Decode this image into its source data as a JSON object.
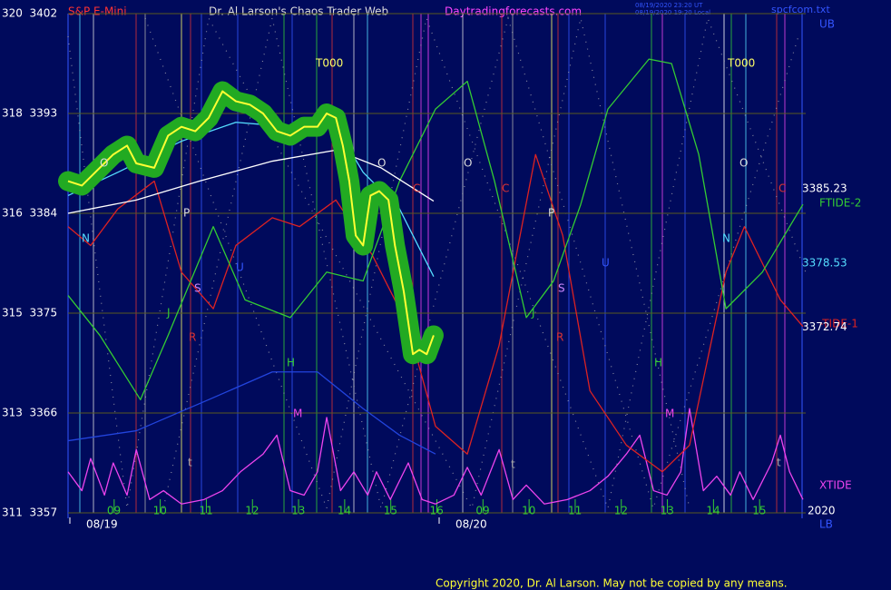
{
  "chart_data": {
    "type": "line",
    "instrument": "S&P E-Mini",
    "title": "Dr. Al Larson's Chaos Trader Web",
    "website": "Daytradingforecasts.com",
    "timestamp_lines": [
      "08/19/2020 23:20 UT",
      "08/19/2020 19:20 Local"
    ],
    "file_name": "spcfcom.txt",
    "copyright": "Copyright 2020, Dr. Al Larson. May not be copied by any means.",
    "upper_band_label": "UB",
    "lower_band_label": "LB",
    "year_label": "2020",
    "date_labels": [
      "08/19",
      "08/20"
    ],
    "right_value_labels": [
      {
        "value": 3385.23,
        "label": "3385.23",
        "color": "#ffffff"
      },
      {
        "value": 3378.53,
        "label": "3378.53",
        "color": "#55ddff"
      },
      {
        "value": 3372.74,
        "label": "3372.74",
        "color": "#ffffff"
      }
    ],
    "annotations": [
      {
        "text": "T000",
        "color": "#ffff66"
      },
      {
        "text": "T000",
        "color": "#ffff66"
      },
      {
        "text": "O",
        "color": "#dddddd"
      },
      {
        "text": "O",
        "color": "#dddddd"
      },
      {
        "text": "O",
        "color": "#dddddd"
      },
      {
        "text": "O",
        "color": "#dddddd"
      },
      {
        "text": "P",
        "color": "#dddddd"
      },
      {
        "text": "P",
        "color": "#dddddd"
      },
      {
        "text": "N",
        "color": "#55ddff"
      },
      {
        "text": "N",
        "color": "#55ddff"
      },
      {
        "text": "S",
        "color": "#cc88ff"
      },
      {
        "text": "S",
        "color": "#cc88ff"
      },
      {
        "text": "J",
        "color": "#33cc33"
      },
      {
        "text": "J",
        "color": "#33cc33"
      },
      {
        "text": "R",
        "color": "#dd3333"
      },
      {
        "text": "R",
        "color": "#dd3333"
      },
      {
        "text": "H",
        "color": "#33cc33"
      },
      {
        "text": "H",
        "color": "#33cc33"
      },
      {
        "text": "M",
        "color": "#ee44ee"
      },
      {
        "text": "M",
        "color": "#ee44ee"
      },
      {
        "text": "C",
        "color": "#dd3333"
      },
      {
        "text": "C",
        "color": "#dd3333"
      },
      {
        "text": "C",
        "color": "#dd3333"
      },
      {
        "text": "U",
        "color": "#3355ff"
      },
      {
        "text": "U",
        "color": "#3355ff"
      },
      {
        "text": "t",
        "color": "#aaaaaa"
      },
      {
        "text": "t",
        "color": "#aaaaaa"
      },
      {
        "text": "t",
        "color": "#aaaaaa"
      }
    ],
    "xlim": [
      0,
      16
    ],
    "xticks": [
      {
        "value": 1,
        "label": "09"
      },
      {
        "value": 2,
        "label": "10"
      },
      {
        "value": 3,
        "label": "11"
      },
      {
        "value": 4,
        "label": "12"
      },
      {
        "value": 5,
        "label": "13"
      },
      {
        "value": 6,
        "label": "14"
      },
      {
        "value": 7,
        "label": "15"
      },
      {
        "value": 8,
        "label": "16"
      },
      {
        "value": 9,
        "label": "09"
      },
      {
        "value": 10,
        "label": "10"
      },
      {
        "value": 11,
        "label": "11"
      },
      {
        "value": 12,
        "label": "12"
      },
      {
        "value": 13,
        "label": "13"
      },
      {
        "value": 14,
        "label": "14"
      },
      {
        "value": 15,
        "label": "15"
      }
    ],
    "ylim": [
      3357,
      3402
    ],
    "yticks": [
      {
        "value": 3357,
        "label": "311  3357"
      },
      {
        "value": 3366,
        "label": "313  3366"
      },
      {
        "value": 3375,
        "label": "315  3375"
      },
      {
        "value": 3384,
        "label": "316  3384"
      },
      {
        "value": 3393,
        "label": "318  3393"
      },
      {
        "value": 3402,
        "label": "320  3402"
      }
    ],
    "grid": true,
    "series": [
      {
        "name": "XTIDE",
        "color": "#ee44ee",
        "x": [
          0,
          0.3,
          0.49,
          0.79,
          0.98,
          1.28,
          1.48,
          1.77,
          2.07,
          2.46,
          2.95,
          3.35,
          3.74,
          4.23,
          4.53,
          4.82,
          5.12,
          5.41,
          5.61,
          5.91,
          6.2,
          6.5,
          6.69,
          6.99,
          7.38,
          7.68,
          7.97,
          8.37,
          8.66,
          8.96,
          9.35,
          9.65,
          9.94,
          10.33,
          10.83,
          11.32,
          11.71,
          12.11,
          12.4,
          12.7,
          12.99,
          13.29,
          13.48,
          13.78,
          14.07,
          14.37,
          14.57,
          14.86,
          15.26,
          15.45,
          15.65,
          15.94
        ],
        "values": [
          3360.7,
          3359.0,
          3361.9,
          3358.6,
          3361.5,
          3358.6,
          3362.7,
          3358.2,
          3359.0,
          3357.8,
          3358.2,
          3359.0,
          3360.7,
          3362.3,
          3364.0,
          3359.0,
          3358.6,
          3360.7,
          3365.6,
          3359.0,
          3360.7,
          3358.6,
          3360.7,
          3358.2,
          3361.5,
          3358.2,
          3357.8,
          3358.6,
          3361.1,
          3358.6,
          3362.7,
          3358.2,
          3359.5,
          3357.8,
          3358.2,
          3359.0,
          3360.3,
          3362.3,
          3364.0,
          3359.0,
          3358.6,
          3360.7,
          3366.4,
          3359.0,
          3360.3,
          3358.6,
          3360.7,
          3358.2,
          3361.5,
          3364.0,
          3360.7,
          3358.2
        ]
      },
      {
        "color": "#2244dd",
        "x": [
          0,
          1.48,
          3.05,
          4.43,
          5.41,
          6.4,
          7.19,
          7.97
        ],
        "values": [
          3363.5,
          3364.4,
          3367.2,
          3369.7,
          3369.7,
          3366.4,
          3364.0,
          3362.3
        ]
      },
      {
        "name": "-TIDE-1",
        "color": "#dd2222",
        "x": [
          0,
          0.49,
          1.08,
          1.87,
          2.46,
          3.15,
          3.64,
          4.43,
          5.02,
          5.81,
          6.59,
          7.38,
          7.97,
          8.66,
          9.35,
          10.14,
          10.73,
          11.32,
          12.11,
          12.89,
          13.48,
          14.27,
          14.67,
          15.45,
          15.94
        ],
        "values": [
          3382.8,
          3381.1,
          3384.4,
          3386.9,
          3378.7,
          3375.4,
          3381.1,
          3383.6,
          3382.8,
          3385.2,
          3380.3,
          3373.8,
          3364.8,
          3362.3,
          3372.1,
          3389.3,
          3382.0,
          3368.0,
          3363.1,
          3360.7,
          3363.1,
          3378.7,
          3382.8,
          3376.2,
          3373.8
        ]
      },
      {
        "name": "FTIDE-2",
        "color": "#33cc33",
        "x": [
          0,
          0.69,
          1.57,
          2.17,
          3.15,
          3.84,
          4.82,
          5.61,
          6.4,
          7.19,
          7.97,
          8.66,
          9.25,
          9.94,
          10.53,
          11.12,
          11.71,
          12.6,
          13.09,
          13.68,
          14.27,
          15.06,
          15.94
        ],
        "values": [
          3376.6,
          3373.0,
          3367.2,
          3373.0,
          3382.8,
          3376.2,
          3374.6,
          3378.7,
          3377.9,
          3386.9,
          3393.4,
          3395.9,
          3386.9,
          3374.6,
          3377.9,
          3384.8,
          3393.4,
          3397.9,
          3397.5,
          3389.3,
          3375.4,
          3378.7,
          3384.8
        ]
      },
      {
        "color": "#ffffff",
        "x": [
          0,
          1.48,
          2.85,
          4.43,
          5.81,
          6.79,
          7.93
        ],
        "values": [
          3384.0,
          3385.2,
          3386.9,
          3388.7,
          3389.7,
          3388.1,
          3385.1
        ]
      },
      {
        "color": "#55ddff",
        "x": [
          0,
          1.08,
          2.46,
          3.64,
          4.82,
          5.81,
          6.4,
          7.19,
          7.93
        ],
        "values": [
          3385.6,
          3387.7,
          3390.5,
          3392.2,
          3391.8,
          3391.8,
          3387.7,
          3384.4,
          3378.3
        ]
      },
      {
        "color": "#ffff33",
        "halo_color": "#22aa22",
        "x": [
          0,
          0.3,
          0.59,
          0.98,
          1.28,
          1.48,
          1.87,
          2.17,
          2.46,
          2.76,
          3.05,
          3.35,
          3.64,
          3.94,
          4.23,
          4.53,
          4.82,
          5.12,
          5.41,
          5.61,
          5.81,
          5.96,
          6.1,
          6.24,
          6.4,
          6.56,
          6.75,
          6.95,
          7.09,
          7.28,
          7.48,
          7.62,
          7.78,
          7.93
        ],
        "values": [
          3386.9,
          3386.5,
          3387.7,
          3389.3,
          3390.1,
          3388.5,
          3388.1,
          3391.0,
          3391.8,
          3391.4,
          3392.6,
          3395.0,
          3394.1,
          3393.8,
          3393.0,
          3391.4,
          3391.0,
          3391.8,
          3391.8,
          3393.0,
          3392.6,
          3390.1,
          3386.9,
          3382.0,
          3381.1,
          3385.6,
          3386.0,
          3385.2,
          3381.1,
          3377.0,
          3371.3,
          3371.7,
          3371.3,
          3373.0
        ]
      }
    ]
  }
}
